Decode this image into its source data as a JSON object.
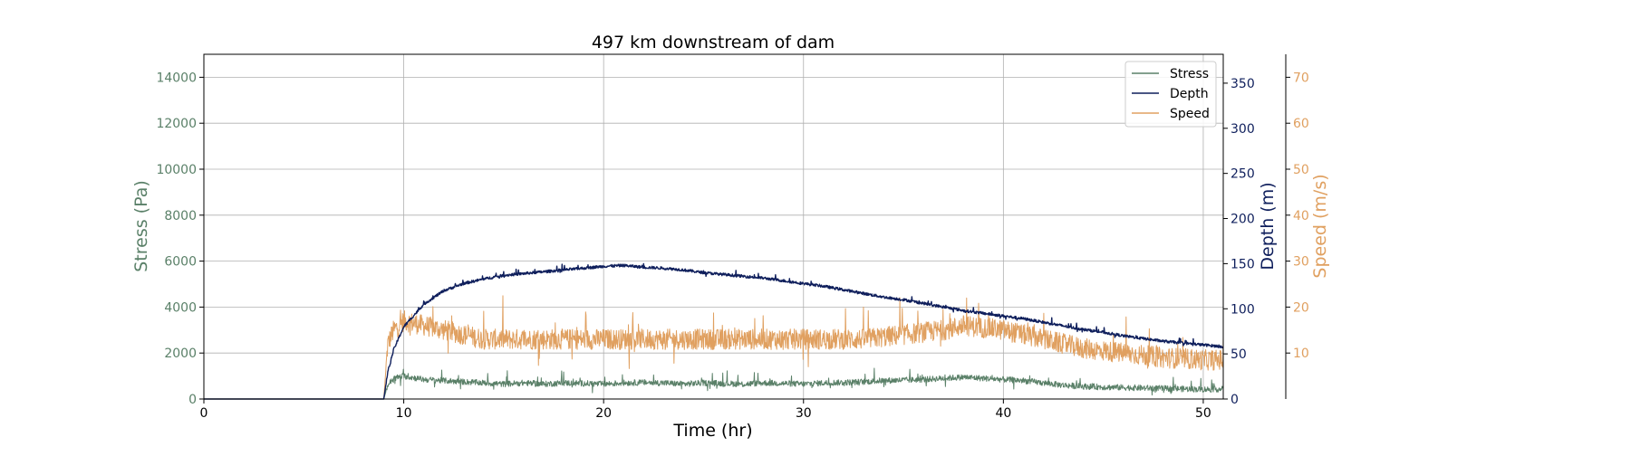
{
  "chart_data": {
    "type": "line",
    "title": "497 km downstream of dam",
    "xlabel": "Time (hr)",
    "xlim": [
      0,
      51
    ],
    "xticks": [
      "0",
      "10",
      "20",
      "30",
      "40",
      "50"
    ],
    "grid": true,
    "legend": {
      "placement": "top-right",
      "entries": [
        "Stress",
        "Depth",
        "Speed"
      ]
    },
    "axes": {
      "stress": {
        "label": "Stress (Pa)",
        "ylim": [
          0,
          15000
        ],
        "ticks": [
          "0",
          "2000",
          "4000",
          "6000",
          "8000",
          "10000",
          "12000",
          "14000"
        ],
        "color": "#5a8068"
      },
      "depth": {
        "label": "Depth (m)",
        "ylim": [
          0,
          382
        ],
        "ticks": [
          "0",
          "50",
          "100",
          "150",
          "200",
          "250",
          "300",
          "350"
        ],
        "color": "#0f1f5c"
      },
      "speed": {
        "label": "Speed (m/s)",
        "ylim": [
          0,
          75
        ],
        "ticks": [
          "10",
          "20",
          "30",
          "40",
          "50",
          "60",
          "70"
        ],
        "color": "#e0a060"
      }
    },
    "series": [
      {
        "name": "Stress",
        "axis": "stress",
        "color": "#5a8068",
        "x": [
          0,
          9,
          9.2,
          9.5,
          10,
          11,
          12,
          13,
          14,
          15,
          16,
          17,
          18,
          19,
          20,
          21,
          22,
          23,
          24,
          25,
          26,
          27,
          28,
          29,
          30,
          31,
          32,
          33,
          34,
          35,
          36,
          37,
          38,
          39,
          40,
          41,
          42,
          43,
          44,
          45,
          46,
          47,
          48,
          49,
          50,
          51
        ],
        "y": [
          0,
          0,
          600,
          900,
          1000,
          850,
          800,
          750,
          700,
          650,
          700,
          650,
          700,
          680,
          650,
          700,
          720,
          700,
          650,
          700,
          680,
          650,
          700,
          680,
          650,
          700,
          720,
          750,
          800,
          820,
          850,
          900,
          950,
          900,
          850,
          800,
          700,
          600,
          550,
          520,
          500,
          480,
          460,
          440,
          420,
          430
        ],
        "noise": 260
      },
      {
        "name": "Depth",
        "axis": "depth",
        "color": "#0f1f5c",
        "x": [
          0,
          9,
          9.2,
          9.5,
          10,
          11,
          12,
          13,
          14,
          15,
          16,
          17,
          18,
          19,
          20,
          21,
          22,
          23,
          24,
          25,
          26,
          27,
          28,
          29,
          30,
          31,
          32,
          33,
          34,
          35,
          36,
          37,
          38,
          39,
          40,
          41,
          42,
          43,
          44,
          45,
          46,
          47,
          48,
          49,
          50,
          51
        ],
        "y": [
          0,
          0,
          30,
          55,
          80,
          105,
          120,
          128,
          133,
          137,
          139,
          141,
          143,
          145,
          147,
          148,
          146,
          145,
          143,
          140,
          138,
          136,
          134,
          131,
          128,
          125,
          121,
          117,
          113,
          110,
          106,
          102,
          98,
          95,
          92,
          89,
          85,
          81,
          77,
          74,
          70,
          67,
          64,
          62,
          60,
          58
        ],
        "noise": 3
      },
      {
        "name": "Speed",
        "axis": "speed",
        "color": "#e0a060",
        "x": [
          0,
          9,
          9.2,
          9.5,
          10,
          11,
          12,
          13,
          14,
          15,
          16,
          17,
          18,
          19,
          20,
          21,
          22,
          23,
          24,
          25,
          26,
          27,
          28,
          29,
          30,
          31,
          32,
          33,
          34,
          35,
          36,
          37,
          38,
          39,
          40,
          41,
          42,
          43,
          44,
          45,
          46,
          47,
          48,
          49,
          50,
          51
        ],
        "y": [
          0,
          0,
          12,
          15,
          17,
          16,
          15,
          14,
          13,
          13,
          13,
          13,
          13,
          13,
          13,
          13,
          13,
          13,
          13,
          13,
          13,
          13,
          13,
          13,
          13,
          13,
          13,
          13,
          13.5,
          14,
          14.5,
          15,
          16,
          15.5,
          15,
          14,
          13,
          12,
          11,
          10.5,
          10,
          9.5,
          9,
          8.8,
          8.5,
          8.5
        ],
        "noise": 4.5
      }
    ]
  }
}
